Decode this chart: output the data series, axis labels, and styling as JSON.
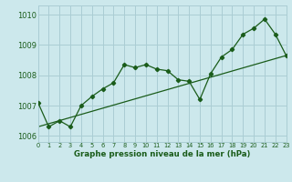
{
  "title": "Graphe pression niveau de la mer (hPa)",
  "bg_color": "#cce8ec",
  "grid_color": "#aacdd4",
  "line_color": "#1a5c1a",
  "x_values": [
    0,
    1,
    2,
    3,
    4,
    5,
    6,
    7,
    8,
    9,
    10,
    11,
    12,
    13,
    14,
    15,
    16,
    17,
    18,
    19,
    20,
    21,
    22,
    23
  ],
  "y_data": [
    1007.1,
    1006.3,
    1006.5,
    1006.3,
    1007.0,
    1007.3,
    1007.55,
    1007.75,
    1008.35,
    1008.25,
    1008.35,
    1008.2,
    1008.15,
    1007.85,
    1007.8,
    1007.2,
    1008.05,
    1008.6,
    1008.85,
    1009.35,
    1009.55,
    1009.85,
    1009.35,
    1008.65
  ],
  "trend_x": [
    0,
    23
  ],
  "trend_y": [
    1006.3,
    1008.65
  ],
  "xlim": [
    0,
    23
  ],
  "ylim": [
    1005.8,
    1010.3
  ],
  "yticks": [
    1006,
    1007,
    1008,
    1009,
    1010
  ],
  "xticks": [
    0,
    1,
    2,
    3,
    4,
    5,
    6,
    7,
    8,
    9,
    10,
    11,
    12,
    13,
    14,
    15,
    16,
    17,
    18,
    19,
    20,
    21,
    22,
    23
  ]
}
